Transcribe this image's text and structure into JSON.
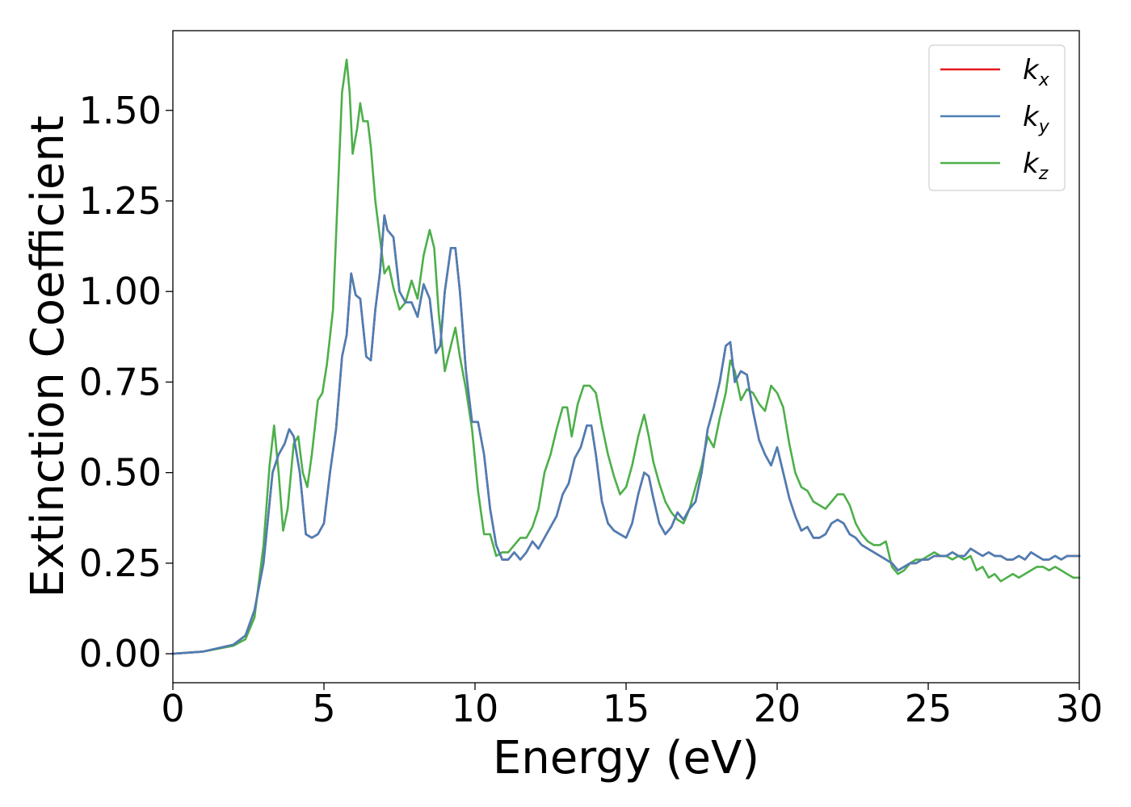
{
  "chart_data": {
    "type": "line",
    "xlabel": "Energy (eV)",
    "ylabel": "Extinction Coefficient",
    "xlim": [
      0,
      30
    ],
    "ylim": [
      -0.08,
      1.72
    ],
    "xticks": [
      0,
      5,
      10,
      15,
      20,
      25,
      30
    ],
    "xtick_labels": [
      "0",
      "5",
      "10",
      "15",
      "20",
      "25",
      "30"
    ],
    "yticks": [
      0,
      0.25,
      0.5,
      0.75,
      1.0,
      1.25,
      1.5
    ],
    "ytick_labels": [
      "0.00",
      "0.25",
      "0.50",
      "0.75",
      "1.00",
      "1.25",
      "1.50"
    ],
    "grid": false,
    "legend_position": "top-right",
    "series": [
      {
        "name": "k_x",
        "legend_main": "k",
        "legend_sub": "x",
        "color": "#e41a1c",
        "x": [
          0,
          1,
          2,
          2.4,
          2.7,
          3.0,
          3.3,
          3.5,
          3.7,
          3.85,
          4.0,
          4.2,
          4.4,
          4.6,
          4.8,
          5.0,
          5.2,
          5.4,
          5.6,
          5.75,
          5.9,
          6.05,
          6.2,
          6.4,
          6.55,
          6.7,
          6.85,
          7.0,
          7.1,
          7.3,
          7.5,
          7.7,
          7.9,
          8.1,
          8.3,
          8.5,
          8.7,
          8.85,
          9.0,
          9.2,
          9.35,
          9.5,
          9.7,
          9.9,
          10.1,
          10.3,
          10.5,
          10.7,
          10.9,
          11.1,
          11.3,
          11.5,
          11.7,
          11.9,
          12.1,
          12.3,
          12.5,
          12.7,
          12.9,
          13.1,
          13.3,
          13.5,
          13.7,
          13.85,
          14.0,
          14.2,
          14.4,
          14.6,
          14.8,
          15.0,
          15.2,
          15.4,
          15.6,
          15.75,
          15.9,
          16.1,
          16.3,
          16.5,
          16.7,
          16.9,
          17.1,
          17.3,
          17.5,
          17.7,
          17.9,
          18.1,
          18.3,
          18.45,
          18.6,
          18.8,
          19.0,
          19.2,
          19.4,
          19.6,
          19.8,
          20.0,
          20.2,
          20.4,
          20.6,
          20.8,
          21.0,
          21.2,
          21.4,
          21.6,
          21.8,
          22.0,
          22.2,
          22.4,
          22.6,
          22.8,
          23.0,
          23.2,
          23.4,
          23.6,
          23.8,
          24.0,
          24.2,
          24.4,
          24.6,
          24.8,
          25.0,
          25.2,
          25.4,
          25.6,
          25.8,
          26.0,
          26.2,
          26.4,
          26.6,
          26.8,
          27.0,
          27.2,
          27.4,
          27.6,
          27.8,
          28.0,
          28.2,
          28.4,
          28.6,
          28.8,
          29.0,
          29.2,
          29.4,
          29.6,
          29.8,
          30.0
        ],
        "y": [
          0.0,
          0.006,
          0.025,
          0.05,
          0.12,
          0.25,
          0.5,
          0.55,
          0.58,
          0.62,
          0.6,
          0.5,
          0.33,
          0.32,
          0.33,
          0.36,
          0.5,
          0.62,
          0.82,
          0.88,
          1.05,
          0.99,
          0.98,
          0.82,
          0.81,
          0.95,
          1.05,
          1.21,
          1.17,
          1.15,
          1.0,
          0.97,
          0.97,
          0.93,
          1.02,
          0.98,
          0.83,
          0.85,
          1.0,
          1.12,
          1.12,
          1.0,
          0.78,
          0.64,
          0.64,
          0.55,
          0.4,
          0.3,
          0.26,
          0.26,
          0.28,
          0.26,
          0.28,
          0.31,
          0.29,
          0.32,
          0.35,
          0.38,
          0.44,
          0.47,
          0.54,
          0.57,
          0.63,
          0.63,
          0.55,
          0.42,
          0.36,
          0.34,
          0.33,
          0.32,
          0.36,
          0.44,
          0.5,
          0.49,
          0.43,
          0.36,
          0.33,
          0.35,
          0.39,
          0.37,
          0.4,
          0.42,
          0.5,
          0.62,
          0.68,
          0.75,
          0.85,
          0.86,
          0.75,
          0.78,
          0.77,
          0.67,
          0.59,
          0.55,
          0.52,
          0.57,
          0.5,
          0.43,
          0.38,
          0.34,
          0.35,
          0.32,
          0.32,
          0.33,
          0.36,
          0.37,
          0.36,
          0.33,
          0.32,
          0.3,
          0.29,
          0.28,
          0.27,
          0.26,
          0.25,
          0.23,
          0.24,
          0.25,
          0.25,
          0.26,
          0.26,
          0.27,
          0.27,
          0.27,
          0.28,
          0.27,
          0.27,
          0.29,
          0.28,
          0.27,
          0.28,
          0.27,
          0.27,
          0.26,
          0.26,
          0.27,
          0.26,
          0.28,
          0.27,
          0.26,
          0.26,
          0.27,
          0.26,
          0.27,
          0.27,
          0.27
        ],
        "note_hidden": ""
      },
      {
        "name": "k_y",
        "legend_main": "k",
        "legend_sub": "y",
        "color": "#4a7fb6",
        "same_as": "k_x"
      },
      {
        "name": "k_z",
        "legend_main": "k",
        "legend_sub": "z",
        "color": "#4daf4a",
        "x": [
          0,
          1,
          2,
          2.4,
          2.7,
          3.0,
          3.2,
          3.35,
          3.5,
          3.65,
          3.8,
          4.0,
          4.15,
          4.3,
          4.45,
          4.6,
          4.8,
          4.95,
          5.1,
          5.3,
          5.45,
          5.6,
          5.75,
          5.85,
          5.95,
          6.1,
          6.2,
          6.3,
          6.45,
          6.55,
          6.7,
          6.85,
          7.0,
          7.15,
          7.3,
          7.5,
          7.7,
          7.9,
          8.1,
          8.3,
          8.5,
          8.65,
          8.8,
          9.0,
          9.2,
          9.35,
          9.5,
          9.7,
          9.9,
          10.1,
          10.3,
          10.5,
          10.7,
          10.9,
          11.1,
          11.3,
          11.5,
          11.7,
          11.9,
          12.1,
          12.3,
          12.5,
          12.7,
          12.9,
          13.05,
          13.2,
          13.4,
          13.6,
          13.8,
          14.0,
          14.2,
          14.4,
          14.6,
          14.8,
          15.0,
          15.2,
          15.4,
          15.6,
          15.75,
          15.9,
          16.1,
          16.3,
          16.5,
          16.7,
          16.9,
          17.1,
          17.3,
          17.5,
          17.7,
          17.9,
          18.1,
          18.3,
          18.45,
          18.6,
          18.8,
          19.0,
          19.2,
          19.4,
          19.6,
          19.8,
          20.0,
          20.2,
          20.4,
          20.6,
          20.8,
          21.0,
          21.2,
          21.4,
          21.6,
          21.8,
          22.0,
          22.2,
          22.4,
          22.6,
          22.8,
          23.0,
          23.2,
          23.4,
          23.6,
          23.8,
          24.0,
          24.2,
          24.4,
          24.6,
          24.8,
          25.0,
          25.2,
          25.4,
          25.6,
          25.8,
          26.0,
          26.2,
          26.4,
          26.6,
          26.8,
          27.0,
          27.2,
          27.4,
          27.6,
          27.8,
          28.0,
          28.2,
          28.4,
          28.6,
          28.8,
          29.0,
          29.2,
          29.4,
          29.6,
          29.8,
          30.0
        ],
        "y": [
          0.0,
          0.006,
          0.022,
          0.04,
          0.1,
          0.3,
          0.52,
          0.63,
          0.5,
          0.34,
          0.4,
          0.58,
          0.6,
          0.5,
          0.46,
          0.55,
          0.7,
          0.72,
          0.8,
          0.95,
          1.25,
          1.55,
          1.64,
          1.55,
          1.38,
          1.45,
          1.52,
          1.47,
          1.47,
          1.4,
          1.25,
          1.15,
          1.05,
          1.07,
          1.01,
          0.95,
          0.97,
          1.03,
          0.98,
          1.1,
          1.17,
          1.12,
          0.94,
          0.78,
          0.85,
          0.9,
          0.82,
          0.73,
          0.62,
          0.45,
          0.33,
          0.33,
          0.27,
          0.28,
          0.28,
          0.3,
          0.32,
          0.32,
          0.35,
          0.4,
          0.5,
          0.55,
          0.62,
          0.68,
          0.68,
          0.6,
          0.69,
          0.74,
          0.74,
          0.72,
          0.63,
          0.55,
          0.49,
          0.44,
          0.46,
          0.52,
          0.6,
          0.66,
          0.6,
          0.53,
          0.47,
          0.42,
          0.39,
          0.37,
          0.36,
          0.4,
          0.46,
          0.52,
          0.6,
          0.57,
          0.65,
          0.72,
          0.81,
          0.78,
          0.7,
          0.73,
          0.72,
          0.69,
          0.67,
          0.74,
          0.72,
          0.68,
          0.58,
          0.5,
          0.46,
          0.45,
          0.42,
          0.41,
          0.4,
          0.42,
          0.44,
          0.44,
          0.41,
          0.36,
          0.33,
          0.31,
          0.3,
          0.3,
          0.31,
          0.24,
          0.22,
          0.23,
          0.25,
          0.26,
          0.26,
          0.27,
          0.28,
          0.27,
          0.27,
          0.26,
          0.27,
          0.26,
          0.27,
          0.23,
          0.24,
          0.21,
          0.22,
          0.2,
          0.21,
          0.22,
          0.21,
          0.22,
          0.23,
          0.24,
          0.24,
          0.23,
          0.24,
          0.23,
          0.22,
          0.21,
          0.21
        ]
      }
    ]
  }
}
